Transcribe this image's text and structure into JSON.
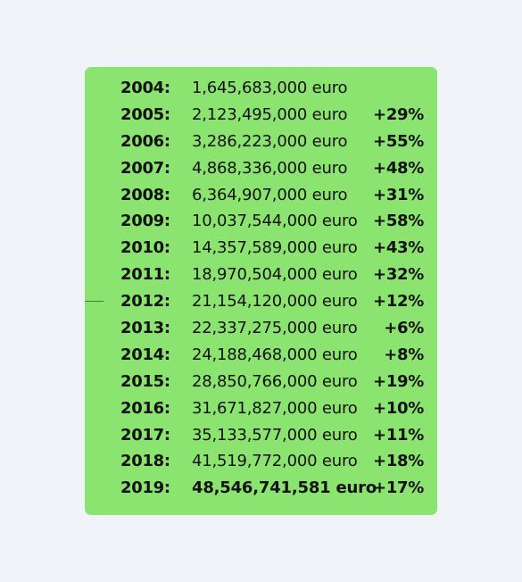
{
  "table": {
    "rows": [
      {
        "year": "2004:",
        "amount": "1,645,683,000 euro",
        "change": ""
      },
      {
        "year": "2005:",
        "amount": "2,123,495,000 euro",
        "change": "+29%"
      },
      {
        "year": "2006:",
        "amount": "3,286,223,000 euro",
        "change": "+55%"
      },
      {
        "year": "2007:",
        "amount": "4,868,336,000 euro",
        "change": "+48%"
      },
      {
        "year": "2008:",
        "amount": "6,364,907,000 euro",
        "change": "+31%"
      },
      {
        "year": "2009:",
        "amount": "10,037,544,000 euro",
        "change": "+58%"
      },
      {
        "year": "2010:",
        "amount": "14,357,589,000 euro",
        "change": "+43%"
      },
      {
        "year": "2011:",
        "amount": "18,970,504,000 euro",
        "change": "+32%"
      },
      {
        "year": "2012:",
        "amount": "21,154,120,000 euro",
        "change": "+12%"
      },
      {
        "year": "2013:",
        "amount": "22,337,275,000 euro",
        "change": "+6%"
      },
      {
        "year": "2014:",
        "amount": "24,188,468,000 euro",
        "change": "+8%"
      },
      {
        "year": "2015:",
        "amount": "28,850,766,000 euro",
        "change": "+19%"
      },
      {
        "year": "2016:",
        "amount": "31,671,827,000 euro",
        "change": "+10%"
      },
      {
        "year": "2017:",
        "amount": "35,133,577,000 euro",
        "change": "+11%"
      },
      {
        "year": "2018:",
        "amount": "41,519,772,000 euro",
        "change": "+18%"
      },
      {
        "year": "2019:",
        "amount": "48,546,741,581 euro",
        "change": "+17%"
      }
    ]
  },
  "colors": {
    "background": "#f0f4f8",
    "card": "#8ce470",
    "text": "#111111"
  }
}
